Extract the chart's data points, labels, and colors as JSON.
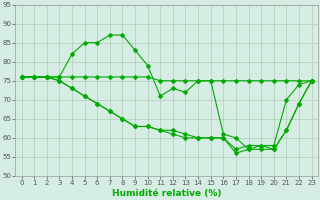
{
  "x": [
    0,
    1,
    2,
    3,
    4,
    5,
    6,
    7,
    8,
    9,
    10,
    11,
    12,
    13,
    14,
    15,
    16,
    17,
    18,
    19,
    20,
    21,
    22,
    23
  ],
  "lines": [
    [
      76,
      76,
      76,
      76,
      82,
      85,
      85,
      87,
      87,
      83,
      79,
      71,
      73,
      72,
      75,
      75,
      61,
      60,
      57,
      58,
      58,
      70,
      74,
      75
    ],
    [
      76,
      76,
      76,
      76,
      76,
      76,
      76,
      76,
      76,
      76,
      76,
      75,
      75,
      75,
      75,
      75,
      75,
      75,
      75,
      75,
      75,
      75,
      75,
      75
    ],
    [
      76,
      76,
      76,
      75,
      73,
      71,
      69,
      67,
      65,
      63,
      63,
      62,
      62,
      61,
      60,
      60,
      60,
      57,
      58,
      58,
      57,
      62,
      69,
      75
    ],
    [
      76,
      76,
      76,
      75,
      73,
      71,
      69,
      67,
      65,
      63,
      63,
      62,
      61,
      60,
      60,
      60,
      60,
      56,
      57,
      57,
      57,
      62,
      69,
      75
    ]
  ],
  "xlim": [
    -0.5,
    23.5
  ],
  "ylim": [
    50,
    95
  ],
  "yticks": [
    50,
    55,
    60,
    65,
    70,
    75,
    80,
    85,
    90,
    95
  ],
  "xticks": [
    0,
    1,
    2,
    3,
    4,
    5,
    6,
    7,
    8,
    9,
    10,
    11,
    12,
    13,
    14,
    15,
    16,
    17,
    18,
    19,
    20,
    21,
    22,
    23
  ],
  "xlabel": "Humidité relative (%)",
  "bg_color": "#d5ede3",
  "grid_color": "#b0ccb8",
  "line_color": "#00aa00",
  "tick_fontsize": 5,
  "xlabel_fontsize": 6.5,
  "linewidth": 0.8,
  "markersize": 2.5
}
